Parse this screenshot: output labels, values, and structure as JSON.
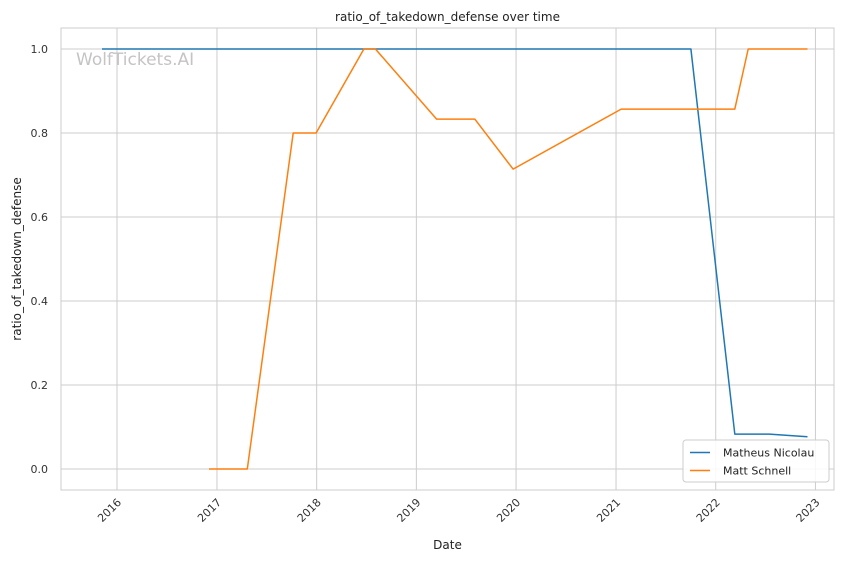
{
  "chart_data": {
    "type": "line",
    "title": "ratio_of_takedown_defense over time",
    "xlabel": "Date",
    "ylabel": "ratio_of_takedown_defense",
    "watermark": "WolfTickets.AI",
    "x_ticks": [
      "2016",
      "2017",
      "2018",
      "2019",
      "2020",
      "2021",
      "2022",
      "2023"
    ],
    "y_ticks": [
      "0.0",
      "0.2",
      "0.4",
      "0.6",
      "0.8",
      "1.0"
    ],
    "xlim": [
      "2015-06-10",
      "2023-03-10"
    ],
    "ylim": [
      -0.05,
      1.05
    ],
    "grid": true,
    "legend_position": "lower-right",
    "series": [
      {
        "name": "Matheus Nicolau",
        "color": "#1f77b4",
        "points": [
          {
            "x": "2015-11-07",
            "y": 1.0
          },
          {
            "x": "2021-10-02",
            "y": 1.0
          },
          {
            "x": "2022-03-12",
            "y": 0.083
          },
          {
            "x": "2022-07-16",
            "y": 0.083
          },
          {
            "x": "2022-12-03",
            "y": 0.077
          }
        ]
      },
      {
        "name": "Matt Schnell",
        "color": "#ff7f0e",
        "points": [
          {
            "x": "2016-12-03",
            "y": 0.0
          },
          {
            "x": "2017-04-22",
            "y": 0.0
          },
          {
            "x": "2017-10-07",
            "y": 0.8
          },
          {
            "x": "2017-12-30",
            "y": 0.8
          },
          {
            "x": "2018-06-23",
            "y": 1.0
          },
          {
            "x": "2018-08-04",
            "y": 1.0
          },
          {
            "x": "2019-03-16",
            "y": 0.833
          },
          {
            "x": "2019-08-03",
            "y": 0.833
          },
          {
            "x": "2019-12-21",
            "y": 0.714
          },
          {
            "x": "2021-01-20",
            "y": 0.857
          },
          {
            "x": "2022-03-12",
            "y": 0.857
          },
          {
            "x": "2022-04-30",
            "y": 1.0
          },
          {
            "x": "2022-12-03",
            "y": 1.0
          }
        ]
      }
    ]
  }
}
